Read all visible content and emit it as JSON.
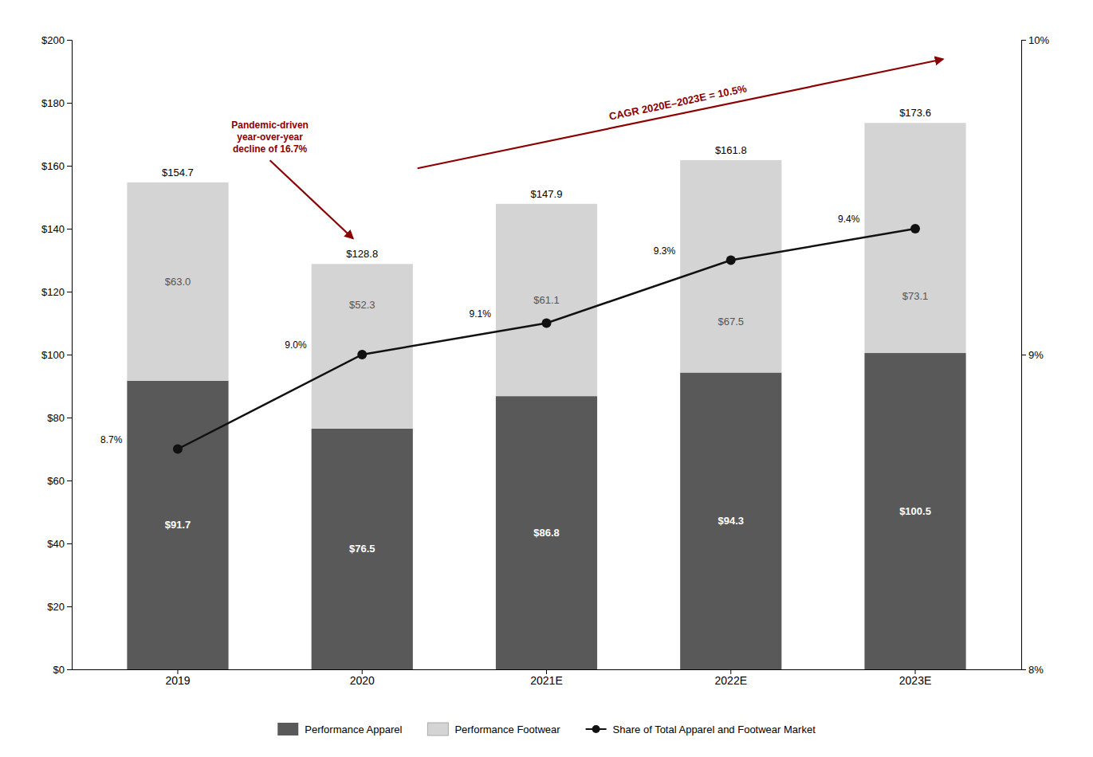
{
  "chart_data": {
    "type": "bar",
    "stacked": true,
    "data_labels": true,
    "grid": false,
    "legend": "bottom",
    "categories": [
      "2019",
      "2020",
      "2021E",
      "2022E",
      "2023E"
    ],
    "series": [
      {
        "name": "Performance Apparel",
        "color": "#595959",
        "values": [
          91.7,
          76.5,
          86.8,
          94.3,
          100.5
        ],
        "value_labels": [
          "$91.7",
          "$76.5",
          "$86.8",
          "$94.3",
          "$100.5"
        ]
      },
      {
        "name": "Performance Footwear",
        "color": "#d4d4d4",
        "values": [
          63.0,
          52.3,
          61.1,
          67.5,
          73.1
        ],
        "value_labels": [
          "$63.0",
          "$52.3",
          "$61.1",
          "$67.5",
          "$73.1"
        ]
      },
      {
        "name": "Share of Total Apparel and Footwear Market",
        "type": "line",
        "axis": "y2",
        "color": "#111111",
        "marker": "circle",
        "values": [
          8.7,
          9.0,
          9.1,
          9.3,
          9.4
        ],
        "value_labels": [
          "8.7%",
          "9.0%",
          "9.1%",
          "9.3%",
          "9.4%"
        ]
      }
    ],
    "totals": {
      "values": [
        154.7,
        128.8,
        147.9,
        161.8,
        173.6
      ],
      "value_labels": [
        "$154.7",
        "$128.8",
        "$147.9",
        "$161.8",
        "$173.6"
      ]
    },
    "ylim": [
      0,
      200
    ],
    "yticks": [
      {
        "value": 0,
        "label": "$0"
      },
      {
        "value": 20,
        "label": "$20"
      },
      {
        "value": 40,
        "label": "$40"
      },
      {
        "value": 60,
        "label": "$60"
      },
      {
        "value": 80,
        "label": "$80"
      },
      {
        "value": 100,
        "label": "$100"
      },
      {
        "value": 120,
        "label": "$120"
      },
      {
        "value": 140,
        "label": "$140"
      },
      {
        "value": 160,
        "label": "$160"
      },
      {
        "value": 180,
        "label": "$180"
      },
      {
        "value": 200,
        "label": "$200"
      }
    ],
    "y2lim": [
      8.0,
      10.0
    ],
    "y2ticks": [
      {
        "value": 8.0,
        "label": "8%"
      },
      {
        "value": 9.0,
        "label": "9%"
      },
      {
        "value": 10.0,
        "label": "10%"
      }
    ],
    "annotations": [
      {
        "text": "Pandemic-driven\nyear-over-year\ndecline of 16.7%",
        "color": "#8B0000"
      },
      {
        "text": "CAGR 2020E–2023E = 10.5%",
        "color": "#8B0000"
      }
    ]
  }
}
